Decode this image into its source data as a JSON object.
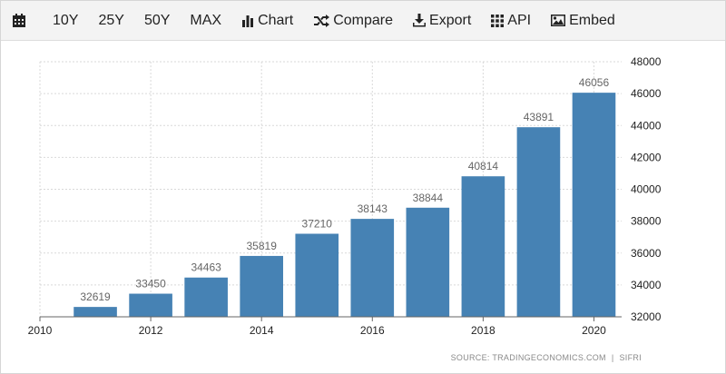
{
  "toolbar": {
    "calendar_icon": "calendar-icon",
    "range_10y": "10Y",
    "range_25y": "25Y",
    "range_50y": "50Y",
    "range_max": "MAX",
    "chart_label": "Chart",
    "compare_label": "Compare",
    "export_label": "Export",
    "api_label": "API",
    "embed_label": "Embed"
  },
  "source": {
    "label": "SOURCE: TRADINGECONOMICS.COM",
    "separator": "|",
    "provider": "SIFRI"
  },
  "chart_data": {
    "type": "bar",
    "x": [
      2011,
      2012,
      2013,
      2014,
      2015,
      2016,
      2017,
      2018,
      2019,
      2020
    ],
    "values": [
      32619,
      33450,
      34463,
      35819,
      37210,
      38143,
      38844,
      40814,
      43891,
      46056
    ],
    "data_labels": [
      "32619",
      "33450",
      "34463",
      "35819",
      "37210",
      "38143",
      "38844",
      "40814",
      "43891",
      "46056"
    ],
    "x_ticks": [
      "2010",
      "2012",
      "2014",
      "2016",
      "2018",
      "2020"
    ],
    "x_tick_values": [
      2010,
      2012,
      2014,
      2016,
      2018,
      2020
    ],
    "y_ticks": [
      "32000",
      "34000",
      "36000",
      "38000",
      "40000",
      "42000",
      "44000",
      "46000",
      "48000"
    ],
    "y_tick_values": [
      32000,
      34000,
      36000,
      38000,
      40000,
      42000,
      44000,
      46000,
      48000
    ],
    "xlim": [
      2010,
      2020.5
    ],
    "ylim": [
      32000,
      48000
    ],
    "bar_color": "#4682b4",
    "grid": true,
    "y_axis_position": "right",
    "title": "",
    "xlabel": "",
    "ylabel": ""
  }
}
